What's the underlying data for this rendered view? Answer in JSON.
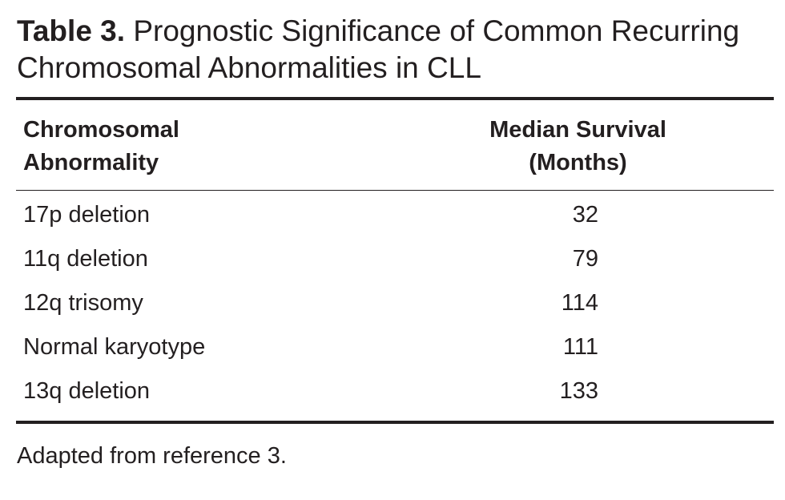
{
  "table": {
    "label": "Table 3.",
    "title": "Prognostic Significance of Common Recurring Chromosomal Abnormalities in CLL",
    "headers": {
      "left_line1": "Chromosomal",
      "left_line2": "Abnormality",
      "right_line1": "Median Survival",
      "right_line2": "(Months)"
    },
    "rows": [
      {
        "abnormality": "17p deletion",
        "median_survival": "32"
      },
      {
        "abnormality": "11q deletion",
        "median_survival": "79"
      },
      {
        "abnormality": "12q trisomy",
        "median_survival": "114"
      },
      {
        "abnormality": "Normal karyotype",
        "median_survival": "111"
      },
      {
        "abnormality": "13q deletion",
        "median_survival": "133"
      }
    ],
    "footnote": "Adapted from reference 3."
  }
}
